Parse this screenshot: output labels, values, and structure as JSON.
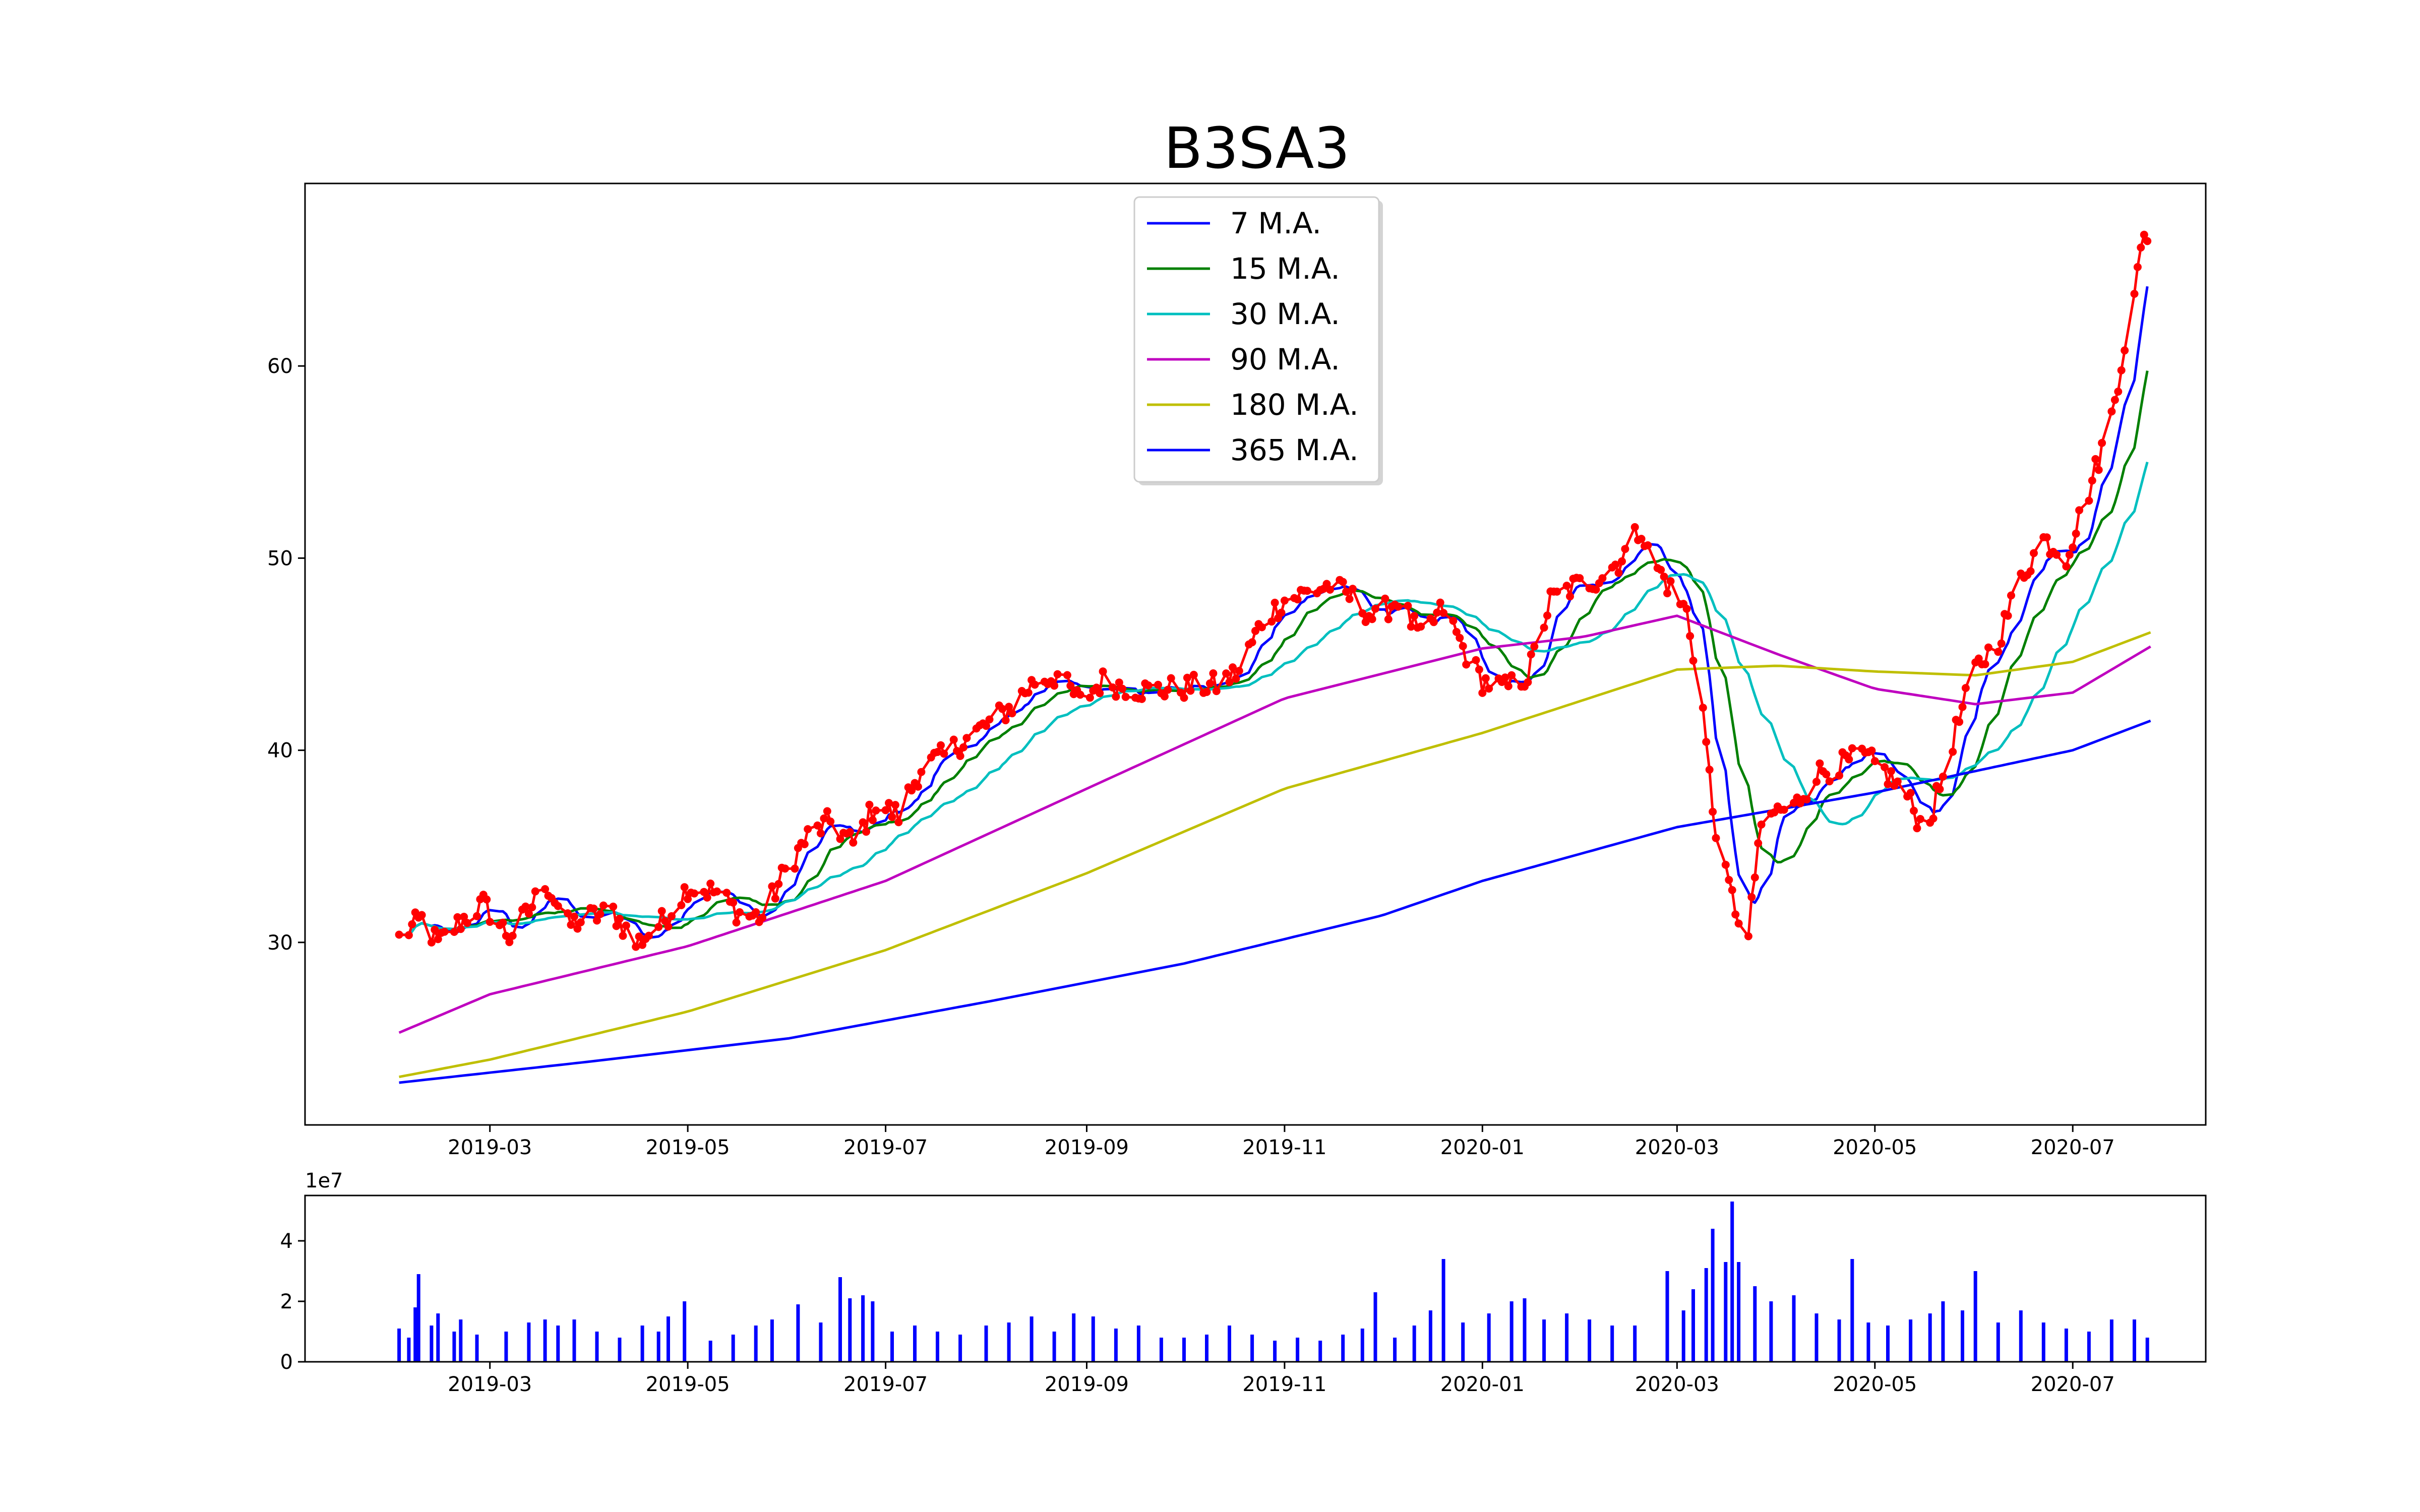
{
  "chart_data": [
    {
      "type": "line",
      "title": "B3SA3",
      "xlabel": "",
      "ylabel": "",
      "x_axis": "dates",
      "xlim": [
        "2019-01-03",
        "2020-08-11"
      ],
      "ylim": [
        20.5,
        69.5
      ],
      "xticks": [
        "2019-03-01",
        "2019-05-01",
        "2019-07-01",
        "2019-09-01",
        "2019-11-01",
        "2020-01-01",
        "2020-03-01",
        "2020-05-01",
        "2020-07-01"
      ],
      "xtick_labels": [
        "2019-03",
        "2019-05",
        "2019-07",
        "2019-09",
        "2019-11",
        "2020-01",
        "2020-03",
        "2020-05",
        "2020-07"
      ],
      "yticks": [
        30,
        40,
        50,
        60
      ],
      "ytick_labels": [
        "30",
        "40",
        "50",
        "60"
      ],
      "grid": false,
      "legend_position": "top-center",
      "price": {
        "color": "#ff0000",
        "marker": "dot",
        "anchors": [
          [
            "2019-02-01",
            30.2
          ],
          [
            "2019-02-08",
            31.2
          ],
          [
            "2019-02-13",
            29.9
          ],
          [
            "2019-02-20",
            31.1
          ],
          [
            "2019-02-27",
            32.0
          ],
          [
            "2019-03-07",
            30.3
          ],
          [
            "2019-03-13",
            31.6
          ],
          [
            "2019-03-18",
            33.2
          ],
          [
            "2019-03-25",
            30.9
          ],
          [
            "2019-04-01",
            31.3
          ],
          [
            "2019-04-08",
            31.6
          ],
          [
            "2019-04-15",
            29.9
          ],
          [
            "2019-04-24",
            31.2
          ],
          [
            "2019-05-01",
            32.9
          ],
          [
            "2019-05-10",
            32.6
          ],
          [
            "2019-05-17",
            31.5
          ],
          [
            "2019-05-24",
            31.3
          ],
          [
            "2019-05-31",
            33.7
          ],
          [
            "2019-06-07",
            35.5
          ],
          [
            "2019-06-14",
            36.3
          ],
          [
            "2019-06-21",
            35.1
          ],
          [
            "2019-06-28",
            37.2
          ],
          [
            "2019-07-05",
            36.6
          ],
          [
            "2019-07-12",
            39.1
          ],
          [
            "2019-07-19",
            39.7
          ],
          [
            "2019-07-26",
            40.6
          ],
          [
            "2019-08-02",
            41.4
          ],
          [
            "2019-08-09",
            42.3
          ],
          [
            "2019-08-16",
            43.6
          ],
          [
            "2019-08-23",
            43.9
          ],
          [
            "2019-08-30",
            42.5
          ],
          [
            "2019-09-06",
            43.6
          ],
          [
            "2019-09-13",
            43.3
          ],
          [
            "2019-09-20",
            43.1
          ],
          [
            "2019-09-27",
            43.2
          ],
          [
            "2019-10-04",
            43.3
          ],
          [
            "2019-10-11",
            43.4
          ],
          [
            "2019-10-18",
            44.1
          ],
          [
            "2019-10-25",
            46.7
          ],
          [
            "2019-11-01",
            47.8
          ],
          [
            "2019-11-08",
            48.2
          ],
          [
            "2019-11-15",
            48.6
          ],
          [
            "2019-11-22",
            47.9
          ],
          [
            "2019-11-29",
            46.8
          ],
          [
            "2019-12-06",
            47.9
          ],
          [
            "2019-12-13",
            45.8
          ],
          [
            "2019-12-20",
            47.4
          ],
          [
            "2019-12-27",
            45.0
          ],
          [
            "2020-01-01",
            43.6
          ],
          [
            "2020-01-08",
            43.2
          ],
          [
            "2020-01-15",
            43.9
          ],
          [
            "2020-01-22",
            47.8
          ],
          [
            "2020-01-29",
            48.5
          ],
          [
            "2020-02-05",
            48.9
          ],
          [
            "2020-02-12",
            49.8
          ],
          [
            "2020-02-19",
            51.6
          ],
          [
            "2020-02-21",
            50.3
          ],
          [
            "2020-02-28",
            48.4
          ],
          [
            "2020-03-04",
            47.2
          ],
          [
            "2020-03-09",
            42.1
          ],
          [
            "2020-03-12",
            36.9
          ],
          [
            "2020-03-16",
            33.4
          ],
          [
            "2020-03-19",
            31.8
          ],
          [
            "2020-03-23",
            30.1
          ],
          [
            "2020-03-26",
            35.2
          ],
          [
            "2020-03-31",
            36.8
          ],
          [
            "2020-04-06",
            37.0
          ],
          [
            "2020-04-13",
            38.8
          ],
          [
            "2020-04-20",
            39.2
          ],
          [
            "2020-04-27",
            39.7
          ],
          [
            "2020-05-04",
            38.9
          ],
          [
            "2020-05-11",
            37.6
          ],
          [
            "2020-05-15",
            36.2
          ],
          [
            "2020-05-19",
            36.9
          ],
          [
            "2020-05-25",
            40.5
          ],
          [
            "2020-06-01",
            44.2
          ],
          [
            "2020-06-08",
            45.7
          ],
          [
            "2020-06-15",
            49.0
          ],
          [
            "2020-06-22",
            51.0
          ],
          [
            "2020-06-29",
            50.1
          ],
          [
            "2020-07-06",
            53.5
          ],
          [
            "2020-07-13",
            57.4
          ],
          [
            "2020-07-17",
            61.2
          ],
          [
            "2020-07-20",
            63.5
          ],
          [
            "2020-07-23",
            67.2
          ],
          [
            "2020-07-26",
            66.5
          ]
        ]
      },
      "series": [
        {
          "name": "7 M.A.",
          "color": "#0000ff",
          "window": 7
        },
        {
          "name": "15 M.A.",
          "color": "#008000",
          "window": 15
        },
        {
          "name": "30 M.A.",
          "color": "#00bfbf",
          "window": 30
        },
        {
          "name": "90 M.A.",
          "color": "#bf00bf",
          "window": 90,
          "values": [
            [
              "2019-02-01",
              25.3
            ],
            [
              "2019-03-01",
              27.3
            ],
            [
              "2019-05-01",
              29.8
            ],
            [
              "2019-07-01",
              33.2
            ],
            [
              "2019-09-01",
              38.0
            ],
            [
              "2019-11-01",
              42.7
            ],
            [
              "2020-01-01",
              45.3
            ],
            [
              "2020-02-01",
              45.9
            ],
            [
              "2020-03-01",
              47.0
            ],
            [
              "2020-04-01",
              45.0
            ],
            [
              "2020-05-01",
              43.2
            ],
            [
              "2020-06-01",
              42.4
            ],
            [
              "2020-07-01",
              43.0
            ],
            [
              "2020-07-26",
              45.5
            ]
          ]
        },
        {
          "name": "180 M.A.",
          "color": "#bfbf00",
          "window": 180,
          "values": [
            [
              "2019-02-01",
              23.0
            ],
            [
              "2019-03-01",
              23.9
            ],
            [
              "2019-05-01",
              26.4
            ],
            [
              "2019-07-01",
              29.6
            ],
            [
              "2019-09-01",
              33.6
            ],
            [
              "2019-11-01",
              38.0
            ],
            [
              "2020-01-01",
              40.9
            ],
            [
              "2020-03-01",
              44.2
            ],
            [
              "2020-04-01",
              44.4
            ],
            [
              "2020-05-01",
              44.1
            ],
            [
              "2020-06-01",
              43.9
            ],
            [
              "2020-07-01",
              44.6
            ],
            [
              "2020-07-26",
              46.2
            ]
          ]
        },
        {
          "name": "365 M.A.",
          "color": "#0000ff",
          "window": 365,
          "values": [
            [
              "2019-02-01",
              22.7
            ],
            [
              "2019-04-01",
              23.8
            ],
            [
              "2019-06-01",
              25.0
            ],
            [
              "2019-08-01",
              26.9
            ],
            [
              "2019-10-01",
              28.9
            ],
            [
              "2019-12-01",
              31.4
            ],
            [
              "2020-01-01",
              33.2
            ],
            [
              "2020-03-01",
              36.0
            ],
            [
              "2020-05-01",
              37.8
            ],
            [
              "2020-07-01",
              40.0
            ],
            [
              "2020-07-26",
              41.6
            ]
          ]
        }
      ]
    },
    {
      "type": "bar",
      "title": "",
      "xlabel": "",
      "ylabel": "",
      "offset_label": "1e7",
      "units": "1e7",
      "ylim": [
        0,
        5.5
      ],
      "yticks": [
        0,
        2,
        4
      ],
      "ytick_labels": [
        "0",
        "2",
        "4"
      ],
      "xticks": [
        "2019-03-01",
        "2019-05-01",
        "2019-07-01",
        "2019-09-01",
        "2019-11-01",
        "2020-01-01",
        "2020-03-01",
        "2020-05-01",
        "2020-07-01"
      ],
      "xtick_labels": [
        "2019-03",
        "2019-05",
        "2019-07",
        "2019-09",
        "2019-11",
        "2020-01",
        "2020-03",
        "2020-05",
        "2020-07"
      ],
      "color": "#0000ff",
      "bars": [
        [
          "2019-02-01",
          1.1
        ],
        [
          "2019-02-04",
          0.8
        ],
        [
          "2019-02-06",
          1.8
        ],
        [
          "2019-02-07",
          2.9
        ],
        [
          "2019-02-11",
          1.2
        ],
        [
          "2019-02-13",
          1.6
        ],
        [
          "2019-02-18",
          1.0
        ],
        [
          "2019-02-20",
          1.4
        ],
        [
          "2019-02-25",
          0.9
        ],
        [
          "2019-03-06",
          1.0
        ],
        [
          "2019-03-13",
          1.3
        ],
        [
          "2019-03-18",
          1.4
        ],
        [
          "2019-03-22",
          1.2
        ],
        [
          "2019-03-27",
          1.4
        ],
        [
          "2019-04-03",
          1.0
        ],
        [
          "2019-04-10",
          0.8
        ],
        [
          "2019-04-17",
          1.2
        ],
        [
          "2019-04-22",
          1.0
        ],
        [
          "2019-04-25",
          1.5
        ],
        [
          "2019-04-30",
          2.0
        ],
        [
          "2019-05-08",
          0.7
        ],
        [
          "2019-05-15",
          0.9
        ],
        [
          "2019-05-22",
          1.2
        ],
        [
          "2019-05-27",
          1.4
        ],
        [
          "2019-06-04",
          1.9
        ],
        [
          "2019-06-11",
          1.3
        ],
        [
          "2019-06-17",
          2.8
        ],
        [
          "2019-06-20",
          2.1
        ],
        [
          "2019-06-24",
          2.2
        ],
        [
          "2019-06-27",
          2.0
        ],
        [
          "2019-07-03",
          1.0
        ],
        [
          "2019-07-10",
          1.2
        ],
        [
          "2019-07-17",
          1.0
        ],
        [
          "2019-07-24",
          0.9
        ],
        [
          "2019-08-01",
          1.2
        ],
        [
          "2019-08-08",
          1.3
        ],
        [
          "2019-08-15",
          1.5
        ],
        [
          "2019-08-22",
          1.0
        ],
        [
          "2019-08-28",
          1.6
        ],
        [
          "2019-09-03",
          1.5
        ],
        [
          "2019-09-10",
          1.1
        ],
        [
          "2019-09-17",
          1.2
        ],
        [
          "2019-09-24",
          0.8
        ],
        [
          "2019-10-01",
          0.8
        ],
        [
          "2019-10-08",
          0.9
        ],
        [
          "2019-10-15",
          1.2
        ],
        [
          "2019-10-22",
          0.9
        ],
        [
          "2019-10-29",
          0.7
        ],
        [
          "2019-11-05",
          0.8
        ],
        [
          "2019-11-12",
          0.7
        ],
        [
          "2019-11-19",
          0.9
        ],
        [
          "2019-11-25",
          1.1
        ],
        [
          "2019-11-29",
          2.3
        ],
        [
          "2019-12-05",
          0.8
        ],
        [
          "2019-12-11",
          1.2
        ],
        [
          "2019-12-16",
          1.7
        ],
        [
          "2019-12-20",
          3.4
        ],
        [
          "2019-12-26",
          1.3
        ],
        [
          "2020-01-03",
          1.6
        ],
        [
          "2020-01-10",
          2.0
        ],
        [
          "2020-01-14",
          2.1
        ],
        [
          "2020-01-20",
          1.4
        ],
        [
          "2020-01-27",
          1.6
        ],
        [
          "2020-02-03",
          1.4
        ],
        [
          "2020-02-10",
          1.2
        ],
        [
          "2020-02-17",
          1.2
        ],
        [
          "2020-02-27",
          3.0
        ],
        [
          "2020-03-03",
          1.7
        ],
        [
          "2020-03-06",
          2.4
        ],
        [
          "2020-03-10",
          3.1
        ],
        [
          "2020-03-12",
          4.4
        ],
        [
          "2020-03-16",
          3.3
        ],
        [
          "2020-03-18",
          5.3
        ],
        [
          "2020-03-20",
          3.3
        ],
        [
          "2020-03-25",
          2.5
        ],
        [
          "2020-03-30",
          2.0
        ],
        [
          "2020-04-06",
          2.2
        ],
        [
          "2020-04-13",
          1.6
        ],
        [
          "2020-04-20",
          1.4
        ],
        [
          "2020-04-24",
          3.4
        ],
        [
          "2020-04-29",
          1.3
        ],
        [
          "2020-05-05",
          1.2
        ],
        [
          "2020-05-12",
          1.4
        ],
        [
          "2020-05-18",
          1.6
        ],
        [
          "2020-05-22",
          2.0
        ],
        [
          "2020-05-28",
          1.7
        ],
        [
          "2020-06-01",
          3.0
        ],
        [
          "2020-06-08",
          1.3
        ],
        [
          "2020-06-15",
          1.7
        ],
        [
          "2020-06-22",
          1.3
        ],
        [
          "2020-06-29",
          1.1
        ],
        [
          "2020-07-06",
          1.0
        ],
        [
          "2020-07-13",
          1.4
        ],
        [
          "2020-07-20",
          1.4
        ],
        [
          "2020-07-24",
          0.8
        ]
      ]
    }
  ]
}
